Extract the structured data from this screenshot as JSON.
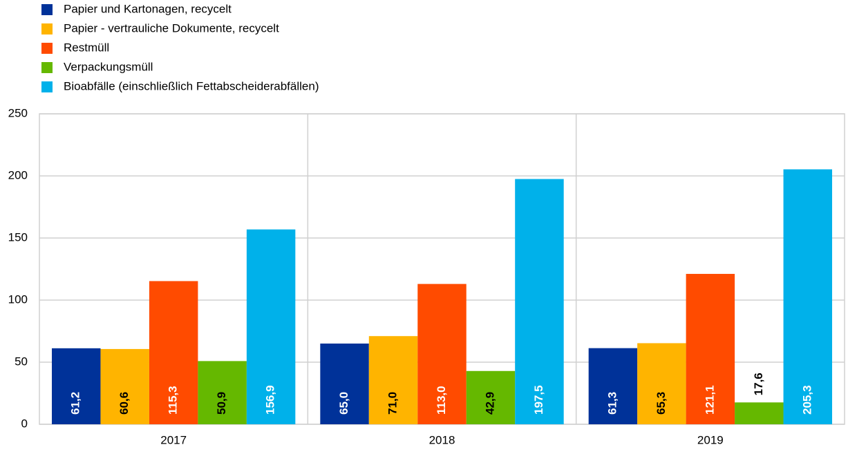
{
  "chart_data": {
    "type": "bar",
    "categories": [
      "2017",
      "2018",
      "2019"
    ],
    "series": [
      {
        "name": "Papier und Kartonagen, recycelt",
        "color": "#003299",
        "values": [
          61.2,
          65.0,
          61.3
        ],
        "value_labels": [
          "61,2",
          "65,0",
          "61,3"
        ]
      },
      {
        "name": "Papier - vertrauliche Dokumente, recycelt",
        "color": "#ffb400",
        "values": [
          60.6,
          71.0,
          65.3
        ],
        "value_labels": [
          "60,6",
          "71,0",
          "65,3"
        ]
      },
      {
        "name": "Restmüll",
        "color": "#ff4b00",
        "values": [
          115.3,
          113.0,
          121.1
        ],
        "value_labels": [
          "115,3",
          "113,0",
          "121,1"
        ]
      },
      {
        "name": "Verpackungsmüll",
        "color": "#65b800",
        "values": [
          50.9,
          42.9,
          17.6
        ],
        "value_labels": [
          "50,9",
          "42,9",
          "17,6"
        ]
      },
      {
        "name": "Bioabfälle (einschließlich Fettabscheiderabfällen)",
        "color": "#00b1ea",
        "values": [
          156.9,
          197.5,
          205.3
        ],
        "value_labels": [
          "156,9",
          "197,5",
          "205,3"
        ]
      }
    ],
    "ylim": [
      0,
      250
    ],
    "yticks": [
      0,
      50,
      100,
      150,
      200,
      250
    ],
    "grid": true
  }
}
